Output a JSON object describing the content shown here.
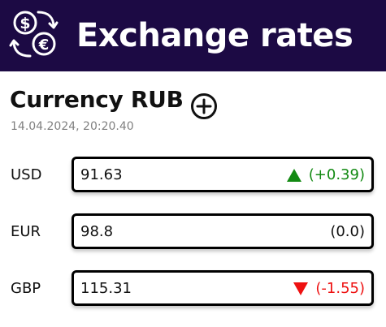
{
  "header": {
    "title": "Exchange rates",
    "logo_icon": "currency-exchange-icon"
  },
  "currency": {
    "title": "Currency RUB",
    "add_icon": "add-circle-icon",
    "timestamp": "14.04.2024, 20:20.40"
  },
  "rates": [
    {
      "code": "USD",
      "value": "91.63",
      "change": "(+0.39)",
      "trend": "up",
      "color": "#138a13"
    },
    {
      "code": "EUR",
      "value": "98.8",
      "change": "(0.0)",
      "trend": "none",
      "color": "#111111"
    },
    {
      "code": "GBP",
      "value": "115.31",
      "change": "(-1.55)",
      "trend": "down",
      "color": "#ee1111"
    }
  ],
  "colors": {
    "header_bg": "#1c0a44",
    "up": "#138a13",
    "down": "#ee1111"
  }
}
